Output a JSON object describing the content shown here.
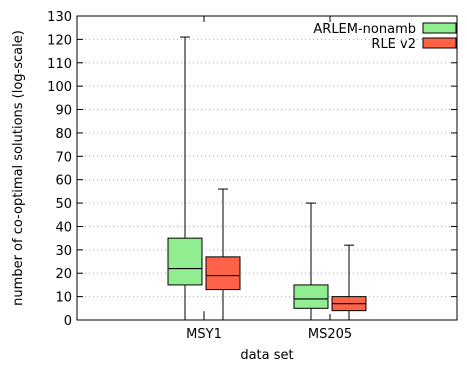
{
  "chart_data": {
    "type": "box",
    "title": "",
    "xlabel": "data set",
    "ylabel": "number of co-optimal solutions (log-scale)",
    "ylim": [
      0,
      130
    ],
    "yticks": [
      0,
      10,
      20,
      30,
      40,
      50,
      60,
      70,
      80,
      90,
      100,
      110,
      120,
      130
    ],
    "grid": true,
    "legend_position": "top-right",
    "categories": [
      "MSY1",
      "MS205"
    ],
    "series": [
      {
        "name": "ARLEM-nonamb",
        "color": "#90ee90",
        "boxes": [
          {
            "min": 0,
            "q1": 15,
            "median": 22,
            "q3": 35,
            "max": 121
          },
          {
            "min": 0,
            "q1": 5,
            "median": 9,
            "q3": 15,
            "max": 50
          }
        ]
      },
      {
        "name": "RLE v2",
        "color": "#ff6347",
        "boxes": [
          {
            "min": 0,
            "q1": 13,
            "median": 19,
            "q3": 27,
            "max": 56
          },
          {
            "min": 0,
            "q1": 4,
            "median": 7,
            "q3": 10,
            "max": 32
          }
        ]
      }
    ],
    "annotations": [
      {
        "category_index": 0,
        "value": 2.5,
        "shape": "short vertical tick between boxes"
      }
    ]
  }
}
